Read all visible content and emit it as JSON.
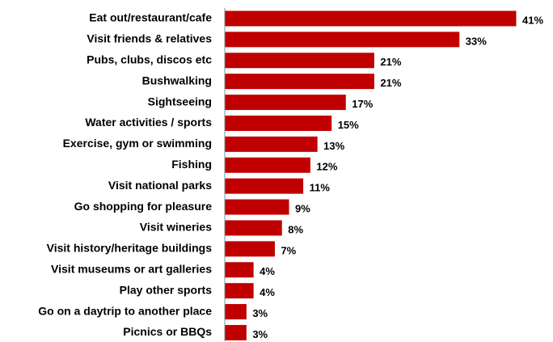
{
  "chart_data": {
    "type": "bar",
    "orientation": "horizontal",
    "title": "",
    "xlabel": "",
    "ylabel": "",
    "categories": [
      "Eat out/restaurant/cafe",
      "Visit friends & relatives",
      "Pubs, clubs, discos etc",
      "Bushwalking",
      "Sightseeing",
      "Water activities / sports",
      "Exercise, gym or swimming",
      "Fishing",
      "Visit national parks",
      "Go shopping for pleasure",
      "Visit wineries",
      "Visit history/heritage buildings",
      "Visit museums or art galleries",
      "Play other sports",
      "Go on a daytrip to another place",
      "Picnics or BBQs"
    ],
    "values": [
      41,
      33,
      21,
      21,
      17,
      15,
      13,
      12,
      11,
      9,
      8,
      7,
      4,
      4,
      3,
      3
    ],
    "value_labels": [
      "41%",
      "33%",
      "21%",
      "21%",
      "17%",
      "15%",
      "13%",
      "12%",
      "11%",
      "9%",
      "8%",
      "7%",
      "4%",
      "4%",
      "3%",
      "3%"
    ],
    "xlim": [
      0,
      41
    ],
    "grid": false,
    "legend": "none",
    "bar_color": "#c00000"
  }
}
